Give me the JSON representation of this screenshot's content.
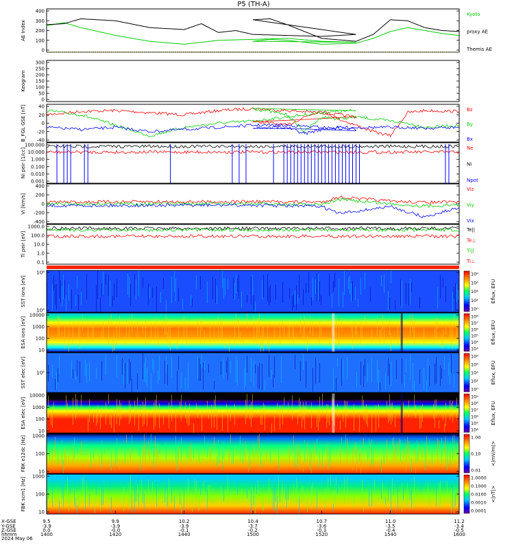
{
  "title": "P5 (TH-A)",
  "colors": {
    "black": "#000000",
    "red": "#ff0000",
    "green": "#00cc00",
    "blue": "#0000ff",
    "kyoto": "#00cc00"
  },
  "chart_data": [
    {
      "type": "line",
      "panel": "ae",
      "ylabel": "AE Index",
      "ylim": [
        0,
        400
      ],
      "yticks": [
        "400",
        "300",
        "200",
        "100",
        "0"
      ],
      "legend": [
        "Kyoto",
        "proxy AE",
        "Themis AE"
      ],
      "series": [
        {
          "name": "Kyoto proxy AE",
          "x": [
            1400,
            1405,
            1410,
            1420,
            1430,
            1440,
            1445,
            1450,
            1460,
            1470,
            1480,
            1490,
            1500,
            1505,
            1510,
            1520,
            1530,
            1535,
            1540,
            1545,
            1550,
            1555,
            1600
          ],
          "values": [
            250,
            280,
            230,
            150,
            90,
            60,
            80,
            100,
            110,
            120,
            90,
            80,
            90,
            110,
            100,
            60,
            70,
            120,
            190,
            230,
            200,
            170,
            150
          ]
        },
        {
          "name": "Themis AE",
          "x": [
            1400,
            1405,
            1410,
            1420,
            1430,
            1440,
            1445,
            1450,
            1455,
            1460,
            1470,
            1480,
            1490,
            1500,
            1505,
            1510,
            1520,
            1530,
            1535,
            1540,
            1545,
            1550,
            1555,
            1600
          ],
          "values": [
            260,
            270,
            320,
            300,
            230,
            210,
            270,
            180,
            200,
            160,
            150,
            140,
            160,
            310,
            320,
            260,
            120,
            90,
            160,
            310,
            300,
            230,
            200,
            190
          ]
        }
      ]
    },
    {
      "type": "heatmap",
      "panel": "keogram",
      "ylabel": "Keogram",
      "ylim": [
        0,
        300
      ],
      "yticks": [
        "300",
        "250",
        "200",
        "150",
        "100",
        "50",
        "0"
      ]
    },
    {
      "type": "line",
      "panel": "bfgl",
      "ylabel": "B_FGL",
      "units": "[nT]",
      "sublabel": "GSE",
      "ylim": [
        -40,
        40
      ],
      "yticks": [
        "40",
        "20",
        "0",
        "-20",
        "-40"
      ],
      "legend": [
        "Bz",
        "By",
        "Bx"
      ],
      "series": [
        {
          "name": "Bz",
          "x": [
            1400,
            1410,
            1420,
            1430,
            1440,
            1450,
            1460,
            1470,
            1480,
            1490,
            1500,
            1510,
            1515,
            1520,
            1525,
            1530,
            1535,
            1540,
            1545,
            1550,
            1600
          ],
          "values": [
            20,
            28,
            30,
            25,
            20,
            30,
            35,
            30,
            25,
            15,
            5,
            -5,
            15,
            30,
            10,
            -5,
            -20,
            -30,
            25,
            30,
            28
          ]
        },
        {
          "name": "By",
          "x": [
            1400,
            1410,
            1420,
            1430,
            1440,
            1450,
            1460,
            1470,
            1480,
            1490,
            1500,
            1510,
            1515,
            1520,
            1525,
            1530,
            1535,
            1540,
            1545,
            1550,
            1600
          ],
          "values": [
            30,
            20,
            -5,
            -30,
            -10,
            0,
            5,
            15,
            25,
            30,
            35,
            20,
            -20,
            15,
            10,
            15,
            10,
            5,
            0,
            -10,
            -5
          ]
        },
        {
          "name": "Bx",
          "x": [
            1400,
            1410,
            1420,
            1430,
            1440,
            1450,
            1460,
            1470,
            1480,
            1490,
            1500,
            1510,
            1515,
            1520,
            1525,
            1530,
            1535,
            1540,
            1545,
            1550,
            1600
          ],
          "values": [
            -10,
            -15,
            -10,
            -20,
            -15,
            -10,
            -5,
            -5,
            -10,
            -15,
            -10,
            -10,
            -25,
            -15,
            -10,
            -10,
            -10,
            -10,
            -10,
            -12,
            -10
          ]
        }
      ]
    },
    {
      "type": "line",
      "panel": "ni",
      "ylabel": "Ni",
      "units": "[1/cc]",
      "sublabel": "peir",
      "ylim": [
        0.001,
        100
      ],
      "yticks": [
        "100.000",
        "10.000",
        "1.000",
        "0.100",
        "0.010",
        "0.001"
      ],
      "legend": [
        "Ne",
        "Ni",
        "Npot"
      ],
      "series": [
        {
          "name": "Ne",
          "x": [
            1400,
            1600
          ],
          "values": [
            10,
            10
          ]
        },
        {
          "name": "Ni",
          "x": [
            1400,
            1600
          ],
          "values": [
            60,
            60
          ]
        }
      ]
    },
    {
      "type": "line",
      "panel": "vi",
      "ylabel": "Vi",
      "units": "[km/s]",
      "ylim": [
        -400,
        400
      ],
      "yticks": [
        "400",
        "200",
        "0",
        "-200",
        "-400"
      ],
      "legend": [
        "Viz",
        "Viy",
        "Vix"
      ],
      "series": [
        {
          "name": "Viz",
          "x": [
            1400,
            1500,
            1520,
            1525,
            1540,
            1550,
            1600
          ],
          "values": [
            40,
            50,
            40,
            150,
            60,
            30,
            40
          ]
        },
        {
          "name": "Viy",
          "x": [
            1400,
            1500,
            1520,
            1525,
            1540,
            1550,
            1600
          ],
          "values": [
            0,
            0,
            -20,
            100,
            0,
            -50,
            -20
          ]
        },
        {
          "name": "Vix",
          "x": [
            1400,
            1500,
            1520,
            1525,
            1540,
            1550,
            1600
          ],
          "values": [
            -40,
            -30,
            -60,
            -220,
            -60,
            -300,
            -80
          ]
        }
      ]
    },
    {
      "type": "line",
      "panel": "ti",
      "ylabel": "Ti",
      "units": "[eV]",
      "sublabel": "peir",
      "ylim": [
        0.1,
        1000
      ],
      "yticks": [
        "1000.0",
        "100.0",
        "10.0",
        "1.0",
        "0.1"
      ],
      "legend": [
        "Te||",
        "Te⊥",
        "Ti||",
        "Ti⊥"
      ],
      "series": [
        {
          "name": "Te||",
          "x": [
            1400,
            1600
          ],
          "values": [
            600,
            600
          ]
        },
        {
          "name": "Ti||",
          "x": [
            1400,
            1600
          ],
          "values": [
            400,
            400
          ]
        },
        {
          "name": "Te⊥",
          "x": [
            1400,
            1600
          ],
          "values": [
            80,
            80
          ]
        }
      ]
    },
    {
      "type": "heatmap",
      "panel": "sst_ion",
      "ylabel": "SST",
      "sublabel": "ions",
      "units": "[eV]",
      "yticks": [
        "10⁶",
        "10⁵"
      ],
      "colorbar": {
        "label": "Eflux, EFU",
        "ticks": [
          "10⁸",
          "10⁶",
          "10⁴",
          "10²",
          "10⁰"
        ]
      }
    },
    {
      "type": "heatmap",
      "panel": "esa_ion",
      "ylabel": "ESA",
      "sublabel": "ions",
      "units": "[eV]",
      "yticks": [
        "10000",
        "1000",
        "100",
        "10"
      ],
      "colorbar": {
        "label": "Eflux, EFU",
        "ticks": [
          "10⁸",
          "10⁷",
          "10⁶",
          "10⁵",
          "10⁴",
          "10³"
        ]
      }
    },
    {
      "type": "heatmap",
      "panel": "sst_elec",
      "ylabel": "SST",
      "sublabel": "elec",
      "units": "[eV]",
      "yticks": [
        "10⁵"
      ],
      "colorbar": {
        "label": "Eflux, EFU",
        "ticks": [
          "10⁸",
          "10⁶",
          "10⁴",
          "10²",
          "10⁰"
        ]
      }
    },
    {
      "type": "heatmap",
      "panel": "esa_elec",
      "ylabel": "ESA",
      "sublabel": "elec",
      "units": "[eV]",
      "yticks": [
        "10000",
        "1000",
        "100",
        "10"
      ],
      "colorbar": {
        "label": "Eflux, EFU",
        "ticks": [
          "10⁹",
          "10⁸",
          "10⁷",
          "10⁶",
          "10⁵",
          "10⁴"
        ]
      }
    },
    {
      "type": "heatmap",
      "panel": "fbk_e",
      "ylabel": "FBK",
      "sublabel": "e12dc",
      "units": "[Hz]",
      "yticks": [
        "1000",
        "100",
        "10"
      ],
      "colorbar": {
        "label": "<|mV/m|>",
        "ticks": [
          "1.00",
          "0.10",
          "0.01"
        ]
      }
    },
    {
      "type": "heatmap",
      "panel": "fbk_b",
      "ylabel": "FBK",
      "sublabel": "scm1",
      "units": "[Hz]",
      "yticks": [
        "1000",
        "100",
        "10"
      ],
      "colorbar": {
        "label": "<|nT|>",
        "ticks": [
          "1.0000",
          "0.1000",
          "0.0100",
          "0.0010",
          "0.0001"
        ]
      }
    }
  ],
  "xaxis": {
    "row_labels": [
      "X-GSE",
      "Y-GSE",
      "Z-GSE",
      "hhmm",
      "2024 May 06"
    ],
    "ticks": [
      {
        "x": 1400,
        "labels": [
          "9.5",
          "-3.9",
          "0.0",
          "1400"
        ]
      },
      {
        "x": 1420,
        "labels": [
          "9.9",
          "-3.9",
          "-0.0",
          "1420"
        ]
      },
      {
        "x": 1440,
        "labels": [
          "10.2",
          "-3.9",
          "-0.1",
          "1440"
        ]
      },
      {
        "x": 1500,
        "labels": [
          "10.4",
          "-3.7",
          "-0.2",
          "1500"
        ]
      },
      {
        "x": 1520,
        "labels": [
          "10.7",
          "-3.6",
          "-0.3",
          "1520"
        ]
      },
      {
        "x": 1540,
        "labels": [
          "11.0",
          "-3.5",
          "-0.4",
          "1540"
        ]
      },
      {
        "x": 1600,
        "labels": [
          "11.2",
          "-3.4",
          "-0.5",
          "1600"
        ]
      }
    ]
  }
}
